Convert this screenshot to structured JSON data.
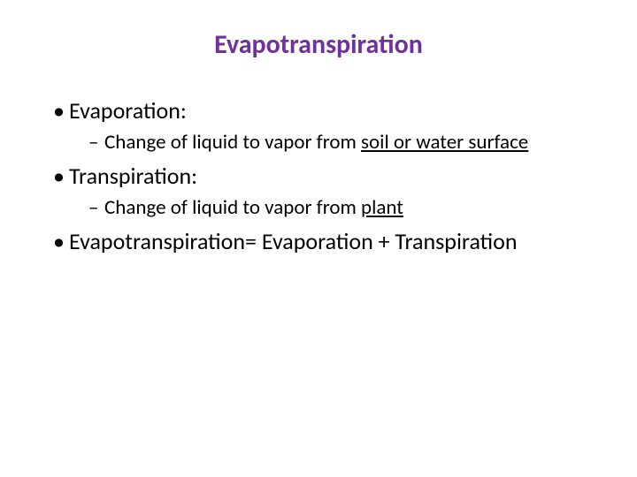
{
  "title": {
    "text": "Evapotranspiration",
    "color": "#7030a0",
    "fontsize": 30
  },
  "body": {
    "color": "#000000",
    "l1_fontsize": 26,
    "l2_fontsize": 23,
    "l1_marker": "•",
    "l2_marker": "–"
  },
  "items": [
    {
      "level": 1,
      "text": "Evaporation:"
    },
    {
      "level": 2,
      "prefix": "Change of liquid to vapor from ",
      "underlined": "soil or water surface"
    },
    {
      "level": 1,
      "text": "Transpiration:"
    },
    {
      "level": 2,
      "prefix": "Change of liquid to vapor from ",
      "underlined": "plant"
    },
    {
      "level": 1,
      "text": "Evapotranspiration= Evaporation + Transpiration"
    }
  ]
}
